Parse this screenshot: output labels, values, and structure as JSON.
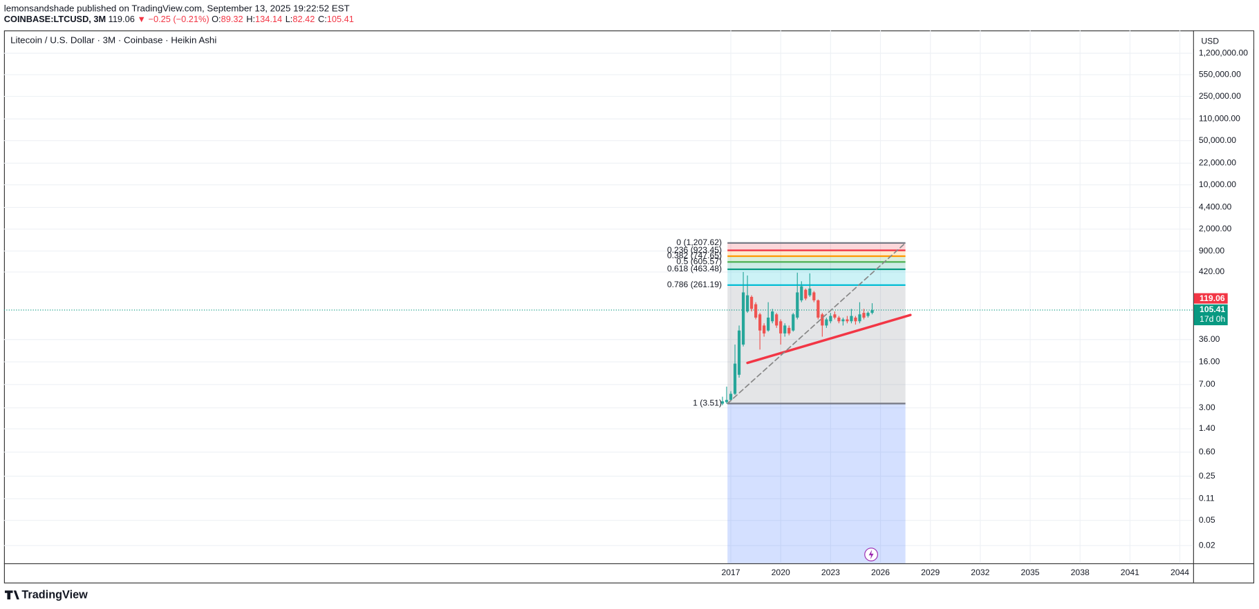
{
  "header": {
    "author_line": "lemonsandshade published on TradingView.com, September 13, 2025 19:22:52 EST",
    "symbol": "COINBASE:LTCUSD, 3M",
    "last": 119.06,
    "change": "▼ −0.25 (−0.21%)",
    "ohlc": [
      {
        "label": "O:",
        "value": 89.32
      },
      {
        "label": "H:",
        "value": 134.14
      },
      {
        "label": "L:",
        "value": 82.42
      },
      {
        "label": "C:",
        "value": 105.41
      }
    ],
    "brand": "TradingView"
  },
  "chart_data": {
    "type": "candlestick",
    "title": "Litecoin / U.S. Dollar · 3M · Coinbase · Heikin Ashi",
    "currency": "USD",
    "log_scale": true,
    "grid": true,
    "up_color": "#26a69a",
    "down_color": "#ef5350",
    "xlim": [
      1973.3,
      2044.8
    ],
    "xticks": [
      2017,
      2020,
      2023,
      2026,
      2029,
      2032,
      2035,
      2038,
      2041,
      2044
    ],
    "ylim": [
      0.0105,
      2750000
    ],
    "yticks": [
      {
        "value": 1200000,
        "label": "1,200,000.00"
      },
      {
        "value": 550000,
        "label": "550,000.00"
      },
      {
        "value": 250000,
        "label": "250,000.00"
      },
      {
        "value": 110000,
        "label": "110,000.00"
      },
      {
        "value": 50000,
        "label": "50,000.00"
      },
      {
        "value": 22000,
        "label": "22,000.00"
      },
      {
        "value": 10000,
        "label": "10,000.00"
      },
      {
        "value": 4400,
        "label": "4,400.00"
      },
      {
        "value": 2000,
        "label": "2,000.00"
      },
      {
        "value": 900,
        "label": "900.00"
      },
      {
        "value": 420,
        "label": "420.00"
      },
      {
        "value": 36,
        "label": "36.00"
      },
      {
        "value": 16,
        "label": "16.00"
      },
      {
        "value": 7,
        "label": "7.00"
      },
      {
        "value": 3,
        "label": "3.00"
      },
      {
        "value": 1.4,
        "label": "1.40"
      },
      {
        "value": 0.6,
        "label": "0.60"
      },
      {
        "value": 0.25,
        "label": "0.25"
      },
      {
        "value": 0.11,
        "label": "0.11"
      },
      {
        "value": 0.05,
        "label": "0.05"
      },
      {
        "value": 0.02,
        "label": "0.02"
      }
    ],
    "candles": {
      "x": [
        2016.5,
        2016.75,
        2017.0,
        2017.25,
        2017.5,
        2017.75,
        2018.0,
        2018.25,
        2018.5,
        2018.75,
        2019.0,
        2019.25,
        2019.5,
        2019.75,
        2020.0,
        2020.25,
        2020.5,
        2020.75,
        2021.0,
        2021.25,
        2021.5,
        2021.75,
        2022.0,
        2022.25,
        2022.5,
        2022.75,
        2023.0,
        2023.25,
        2023.5,
        2023.75,
        2024.0,
        2024.25,
        2024.5,
        2024.75,
        2025.0,
        2025.25,
        2025.5
      ],
      "open": [
        3.5,
        3.7,
        4,
        5,
        10,
        30,
        100,
        170,
        130,
        90,
        60,
        50,
        70,
        90,
        70,
        45,
        55,
        50,
        80,
        150,
        220,
        180,
        200,
        150,
        90,
        60,
        70,
        90,
        80,
        70,
        75,
        70,
        80,
        70,
        95,
        85,
        95
      ],
      "close": [
        3.8,
        4,
        5,
        15,
        50,
        200,
        180,
        110,
        80,
        50,
        45,
        80,
        100,
        60,
        45,
        60,
        45,
        90,
        200,
        250,
        160,
        230,
        150,
        80,
        60,
        75,
        85,
        80,
        70,
        75,
        70,
        85,
        70,
        90,
        80,
        95,
        105
      ],
      "high": [
        4.5,
        6.5,
        5.5,
        30,
        60,
        420,
        370,
        180,
        140,
        95,
        65,
        140,
        110,
        95,
        75,
        65,
        60,
        95,
        410,
        300,
        230,
        400,
        210,
        155,
        95,
        80,
        95,
        100,
        85,
        80,
        85,
        110,
        85,
        140,
        110,
        100,
        135
      ],
      "low": [
        3.3,
        3.5,
        3.8,
        4.8,
        9,
        28,
        95,
        100,
        75,
        25,
        40,
        48,
        65,
        55,
        30,
        40,
        42,
        48,
        75,
        140,
        150,
        170,
        140,
        75,
        40,
        55,
        65,
        75,
        65,
        60,
        65,
        65,
        62,
        65,
        75,
        80,
        90
      ]
    },
    "fib": {
      "x": [
        2016.8,
        2027.5
      ],
      "levels": [
        {
          "label": "0 (1,207.62)",
          "price": 1207.62,
          "color": "#787b86",
          "band": "rgba(242,54,69,0.2)"
        },
        {
          "label": "0.236 (923.45)",
          "price": 923.45,
          "color": "#f23645",
          "band": "rgba(255,152,0,0.2)"
        },
        {
          "label": "0.382 (747.65)",
          "price": 747.65,
          "color": "#ff9800",
          "band": "rgba(76,175,80,0.2)"
        },
        {
          "label": "0.5 (605.57)",
          "price": 605.57,
          "color": "#4caf50",
          "band": "rgba(8,153,129,0.2)"
        },
        {
          "label": "0.618 (463.48)",
          "price": 463.48,
          "color": "#089981",
          "band": "rgba(0,188,212,0.2)"
        },
        {
          "label": "0.786 (261.19)",
          "price": 261.19,
          "color": "#00bcd4",
          "band": "rgba(120,123,134,0.2)"
        },
        {
          "label": "1 (3.51)",
          "price": 3.51,
          "color": "#787b86",
          "band": "rgba(41,98,255,0.2)"
        }
      ]
    },
    "trendlines": [
      {
        "color": "#f23645",
        "width": 3,
        "dashed": false,
        "x": [
          2018.0,
          2027.8
        ],
        "y": [
          15.4,
          88
        ]
      },
      {
        "color": "#888888",
        "width": 1.5,
        "dashed": true,
        "x": [
          2016.8,
          2027.5
        ],
        "y": [
          3.51,
          1207.62
        ]
      }
    ],
    "price_labels": [
      {
        "value": 119.06,
        "color": "#f23645"
      },
      {
        "value": 105.41,
        "color": "#089981",
        "sub": "17d 0h"
      }
    ]
  }
}
